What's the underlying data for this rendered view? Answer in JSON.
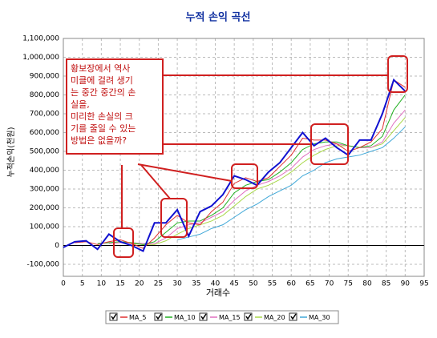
{
  "chart_data": {
    "type": "line",
    "title": "누적 손익 곡선",
    "xlabel": "거래수",
    "ylabel": "누적손익(천원)",
    "x": [
      0,
      3,
      6,
      9,
      12,
      15,
      18,
      21,
      24,
      27,
      30,
      33,
      36,
      39,
      42,
      45,
      48,
      51,
      54,
      57,
      60,
      63,
      66,
      69,
      72,
      75,
      78,
      81,
      84,
      87,
      90
    ],
    "series": [
      {
        "color": "#1010d0",
        "values": [
          -10000,
          20000,
          25000,
          -20000,
          60000,
          20000,
          0,
          -30000,
          120000,
          120000,
          190000,
          50000,
          180000,
          210000,
          270000,
          370000,
          350000,
          320000,
          390000,
          440000,
          520000,
          600000,
          530000,
          570000,
          520000,
          480000,
          560000,
          560000,
          700000,
          880000,
          820000
        ]
      },
      {
        "name": "MA_5",
        "color": "#e03030",
        "values": [
          null,
          15000,
          20000,
          5000,
          20000,
          30000,
          10000,
          -15000,
          40000,
          110000,
          160000,
          120000,
          110000,
          180000,
          230000,
          330000,
          360000,
          340000,
          360000,
          420000,
          480000,
          570000,
          560000,
          560000,
          540000,
          500000,
          520000,
          550000,
          620000,
          880000,
          840000
        ]
      },
      {
        "name": "MA_10",
        "color": "#20b020",
        "values": [
          null,
          null,
          null,
          10000,
          15000,
          20000,
          15000,
          5000,
          20000,
          70000,
          120000,
          130000,
          130000,
          160000,
          200000,
          280000,
          320000,
          340000,
          350000,
          390000,
          440000,
          510000,
          540000,
          550000,
          550000,
          530000,
          520000,
          530000,
          580000,
          720000,
          800000
        ]
      },
      {
        "name": "MA_15",
        "color": "#e070c0",
        "values": [
          null,
          null,
          null,
          null,
          10000,
          15000,
          15000,
          10000,
          10000,
          40000,
          90000,
          110000,
          120000,
          150000,
          180000,
          240000,
          290000,
          320000,
          340000,
          370000,
          410000,
          470000,
          510000,
          530000,
          540000,
          530000,
          520000,
          520000,
          550000,
          650000,
          720000
        ]
      },
      {
        "name": "MA_20",
        "color": "#a8d848",
        "values": [
          null,
          null,
          null,
          null,
          null,
          null,
          10000,
          5000,
          5000,
          25000,
          60000,
          90000,
          110000,
          130000,
          160000,
          210000,
          260000,
          300000,
          320000,
          350000,
          390000,
          440000,
          480000,
          510000,
          530000,
          530000,
          520000,
          520000,
          540000,
          610000,
          680000
        ]
      },
      {
        "name": "MA_30",
        "color": "#40a8d8",
        "values": [
          null,
          null,
          null,
          null,
          null,
          null,
          null,
          null,
          null,
          null,
          30000,
          45000,
          60000,
          90000,
          110000,
          150000,
          190000,
          220000,
          260000,
          290000,
          320000,
          370000,
          400000,
          440000,
          460000,
          470000,
          480000,
          500000,
          520000,
          570000,
          630000
        ]
      }
    ],
    "xlim": [
      0,
      95
    ],
    "xticks": [
      0,
      5,
      10,
      15,
      20,
      25,
      30,
      35,
      40,
      45,
      50,
      55,
      60,
      65,
      70,
      75,
      80,
      85,
      90,
      95
    ],
    "ylim": [
      -100000,
      1100000
    ],
    "yticks": [
      {
        "value": -100000,
        "label": "-100,000"
      },
      0,
      {
        "value": 100000,
        "label": "100,000"
      },
      {
        "value": 200000,
        "label": "200,000"
      },
      {
        "value": 300000,
        "label": "300,000"
      },
      {
        "value": 400000,
        "label": "400,000"
      },
      {
        "value": 500000,
        "label": "500,000"
      },
      {
        "value": 600000,
        "label": "600,000"
      },
      {
        "value": 700000,
        "label": "700,000"
      },
      {
        "value": 800000,
        "label": "800,000"
      },
      {
        "value": 900000,
        "label": "900,000"
      },
      {
        "value": 1000000,
        "label": "1,000,000"
      },
      {
        "value": 1100000,
        "label": "1,100,000"
      }
    ],
    "grid": true,
    "annotation": [
      "황보장에서 역사",
      "미클에 걸려 생기",
      "는 중간 중간의 손",
      "실을,",
      "미리한 손실의 크",
      "기를 줄일 수 있는",
      "방법은 없을까?"
    ]
  }
}
